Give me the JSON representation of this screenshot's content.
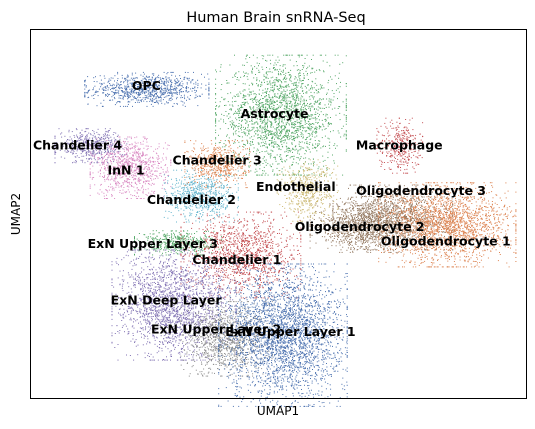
{
  "chart_data": {
    "type": "scatter",
    "title": "Human Brain snRNA-Seq",
    "xlabel": "UMAP1",
    "ylabel": "UMAP2",
    "xlim": [
      0,
      100
    ],
    "ylim": [
      0,
      100
    ],
    "grid": false,
    "ticks": false,
    "legend": "on data",
    "clusters": [
      {
        "name": "OPC",
        "color": "#4c72b0",
        "cx": 23.3,
        "cy": 84.0,
        "sx": 5.7,
        "sy": 2.1,
        "n": 900
      },
      {
        "name": "Astrocyte",
        "color": "#55a868",
        "cx": 50.4,
        "cy": 77.0,
        "sx": 6.0,
        "sy": 7.4,
        "n": 2100
      },
      {
        "name": "Chandelier 4",
        "color": "#8172b3",
        "cx": 12.0,
        "cy": 68.7,
        "sx": 3.3,
        "sy": 2.1,
        "n": 500
      },
      {
        "name": "InN 1",
        "color": "#da8bc3",
        "cx": 20.0,
        "cy": 62.7,
        "sx": 3.7,
        "sy": 3.8,
        "n": 900
      },
      {
        "name": "Chandelier 3",
        "color": "#dd8452",
        "cx": 37.6,
        "cy": 63.7,
        "sx": 3.0,
        "sy": 2.9,
        "n": 550
      },
      {
        "name": "Macrophage",
        "color": "#c44e52",
        "cx": 74.4,
        "cy": 68.7,
        "sx": 2.1,
        "sy": 3.4,
        "n": 350
      },
      {
        "name": "Endothelial",
        "color": "#ccb974",
        "cx": 55.8,
        "cy": 56.5,
        "sx": 2.8,
        "sy": 3.8,
        "n": 500
      },
      {
        "name": "Chandelier 2",
        "color": "#64b5cd",
        "cx": 34.3,
        "cy": 55.0,
        "sx": 3.4,
        "sy": 3.2,
        "n": 650
      },
      {
        "name": "Oligodendrocyte 3",
        "color": "#937860",
        "cx": 73.0,
        "cy": 49.2,
        "sx": 5.5,
        "sy": 4.0,
        "n": 1400
      },
      {
        "name": "Oligodendrocyte 1",
        "color": "#dd8452",
        "cx": 84.0,
        "cy": 47.2,
        "sx": 6.3,
        "sy": 5.2,
        "n": 2100
      },
      {
        "name": "Oligodendrocyte 2",
        "color": "#937860",
        "cx": 66.4,
        "cy": 46.3,
        "sx": 4.6,
        "sy": 3.0,
        "n": 800
      },
      {
        "name": "ExN Upper Layer 3",
        "color": "#55a868",
        "cx": 29.6,
        "cy": 42.3,
        "sx": 4.0,
        "sy": 1.5,
        "n": 450
      },
      {
        "name": "Chandelier 1",
        "color": "#c44e52",
        "cx": 42.3,
        "cy": 39.0,
        "sx": 5.5,
        "sy": 5.3,
        "n": 1300
      },
      {
        "name": "ExN Deep Layer",
        "color": "#8172b3",
        "cx": 28.8,
        "cy": 25.4,
        "sx": 5.7,
        "sy": 6.8,
        "n": 2000
      },
      {
        "name": "ExN Upper Layer 2",
        "color": "#8c8c8c",
        "cx": 39.4,
        "cy": 16.2,
        "sx": 4.2,
        "sy": 4.6,
        "n": 1100
      },
      {
        "name": "ExN Upper Layer 1",
        "color": "#4c72b0",
        "cx": 50.8,
        "cy": 17.2,
        "sx": 5.9,
        "sy": 8.8,
        "n": 3000
      }
    ],
    "labels": [
      {
        "text": "OPC",
        "x": 23.3,
        "y": 84.7
      },
      {
        "text": "Astrocyte",
        "x": 49.2,
        "y": 77.0
      },
      {
        "text": "Chandelier 4",
        "x": 9.4,
        "y": 68.5
      },
      {
        "text": "InN 1",
        "x": 19.2,
        "y": 61.7
      },
      {
        "text": "Chandelier 3",
        "x": 37.6,
        "y": 64.4
      },
      {
        "text": "Macrophage",
        "x": 74.4,
        "y": 68.5
      },
      {
        "text": "Endothelial",
        "x": 53.5,
        "y": 57.2
      },
      {
        "text": "Chandelier 2",
        "x": 32.4,
        "y": 53.7
      },
      {
        "text": "Oligodendrocyte 3",
        "x": 78.8,
        "y": 56.1
      },
      {
        "text": "Oligodendrocyte 2",
        "x": 66.4,
        "y": 46.3
      },
      {
        "text": "Oligodendrocyte 1",
        "x": 83.8,
        "y": 42.4
      },
      {
        "text": "ExN Upper Layer 3",
        "x": 24.6,
        "y": 41.7
      },
      {
        "text": "Chandelier 1",
        "x": 41.6,
        "y": 37.3
      },
      {
        "text": "ExN Deep Layer",
        "x": 27.3,
        "y": 26.4
      },
      {
        "text": "ExN Upper Layer 2",
        "x": 37.4,
        "y": 18.5
      },
      {
        "text": "ExN Upper Layer 1",
        "x": 52.4,
        "y": 17.8
      }
    ]
  }
}
